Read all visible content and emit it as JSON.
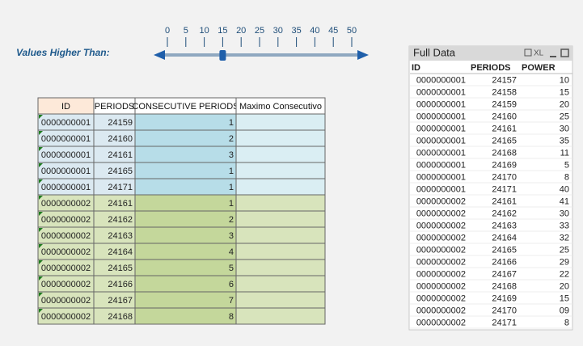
{
  "slider": {
    "label": "Values Higher Than:",
    "ticks": [
      0,
      5,
      10,
      15,
      20,
      25,
      30,
      35,
      40,
      45,
      50
    ],
    "value": 15
  },
  "left_table": {
    "headers": [
      "ID",
      "PERIODS",
      "CONSECUTIVE PERIODS",
      "Maximo Consecutivo"
    ],
    "rows": [
      [
        "0000000001",
        "24159",
        "1"
      ],
      [
        "0000000001",
        "24160",
        "2"
      ],
      [
        "0000000001",
        "24161",
        "3"
      ],
      [
        "0000000001",
        "24165",
        "1"
      ],
      [
        "0000000001",
        "24171",
        "1"
      ],
      [
        "0000000002",
        "24161",
        "1"
      ],
      [
        "0000000002",
        "24162",
        "2"
      ],
      [
        "0000000002",
        "24163",
        "3"
      ],
      [
        "0000000002",
        "24164",
        "4"
      ],
      [
        "0000000002",
        "24165",
        "5"
      ],
      [
        "0000000002",
        "24166",
        "6"
      ],
      [
        "0000000002",
        "24167",
        "7"
      ],
      [
        "0000000002",
        "24168",
        "8"
      ]
    ]
  },
  "right_table": {
    "title": "Full Data",
    "icon_label": "XL",
    "headers": [
      "ID",
      "PERIODS",
      "POWER"
    ],
    "rows": [
      [
        "0000000001",
        "24157",
        "10"
      ],
      [
        "0000000001",
        "24158",
        "15"
      ],
      [
        "0000000001",
        "24159",
        "20"
      ],
      [
        "0000000001",
        "24160",
        "25"
      ],
      [
        "0000000001",
        "24161",
        "30"
      ],
      [
        "0000000001",
        "24165",
        "35"
      ],
      [
        "0000000001",
        "24168",
        "11"
      ],
      [
        "0000000001",
        "24169",
        "5"
      ],
      [
        "0000000001",
        "24170",
        "8"
      ],
      [
        "0000000001",
        "24171",
        "40"
      ],
      [
        "0000000002",
        "24161",
        "41"
      ],
      [
        "0000000002",
        "24162",
        "30"
      ],
      [
        "0000000002",
        "24163",
        "33"
      ],
      [
        "0000000002",
        "24164",
        "32"
      ],
      [
        "0000000002",
        "24165",
        "25"
      ],
      [
        "0000000002",
        "24166",
        "29"
      ],
      [
        "0000000002",
        "24167",
        "22"
      ],
      [
        "0000000002",
        "24168",
        "20"
      ],
      [
        "0000000002",
        "24169",
        "15"
      ],
      [
        "0000000002",
        "24170",
        "09"
      ],
      [
        "0000000002",
        "24171",
        "8"
      ]
    ]
  }
}
